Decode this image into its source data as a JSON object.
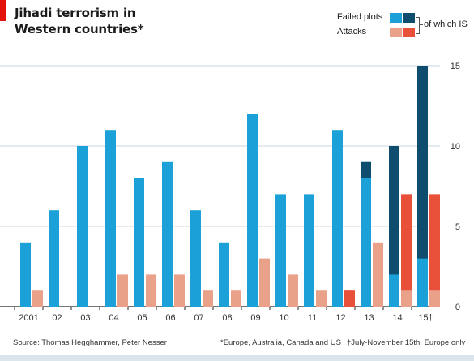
{
  "title_line1": "Jihadi terrorism in",
  "title_line2": "Western countries*",
  "legend": {
    "failed_plots": "Failed plots",
    "attacks": "Attacks",
    "of_which_is": "of which IS"
  },
  "colors": {
    "failed_plots": "#1ba0d8",
    "failed_plots_is": "#0e4d6e",
    "attacks": "#e9a18a",
    "attacks_is": "#e8503a",
    "accent": "#e3120b"
  },
  "footer": {
    "source": "Source: Thomas Hegghammer, Peter Nesser",
    "note1": "*Europe, Australia, Canada and US",
    "note2": "†July-November 15th, Europe only"
  },
  "chart_data": {
    "type": "bar",
    "categories": [
      "2001",
      "02",
      "03",
      "04",
      "05",
      "06",
      "07",
      "08",
      "09",
      "10",
      "11",
      "12",
      "13",
      "14",
      "15†"
    ],
    "series": [
      {
        "name": "Failed plots",
        "values": [
          4,
          6,
          10,
          11,
          8,
          9,
          6,
          4,
          12,
          7,
          7,
          11,
          9,
          10,
          15
        ]
      },
      {
        "name": "Failed plots of which IS",
        "values": [
          0,
          0,
          0,
          0,
          0,
          0,
          0,
          0,
          0,
          0,
          0,
          0,
          1,
          8,
          12
        ]
      },
      {
        "name": "Attacks",
        "values": [
          1,
          0,
          0,
          2,
          2,
          2,
          1,
          1,
          3,
          2,
          1,
          1,
          4,
          7,
          7
        ]
      },
      {
        "name": "Attacks of which IS",
        "values": [
          0,
          0,
          0,
          0,
          0,
          0,
          0,
          0,
          0,
          0,
          0,
          1,
          0,
          6,
          6
        ]
      }
    ],
    "yticks": [
      0,
      5,
      10,
      15
    ],
    "ylim": [
      0,
      15
    ],
    "y_axis_side": "right",
    "grid": true
  }
}
